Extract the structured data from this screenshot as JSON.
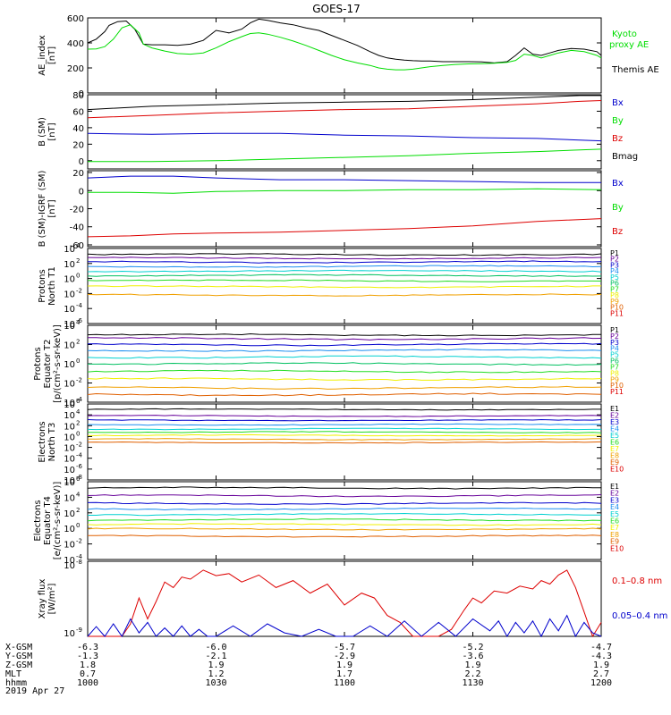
{
  "title": "GOES-17",
  "date_label": "2019 Apr 27",
  "colors": {
    "black": "#000000",
    "green": "#00dd00",
    "blue": "#0000cc",
    "red": "#dd0000"
  },
  "chart_data": [
    {
      "type": "line",
      "ylabel": [
        "AE_index",
        "[nT]"
      ],
      "ylim": [
        0,
        600
      ],
      "yticks": [
        0,
        200,
        400,
        600
      ],
      "ytick_labels": [
        "0",
        "200",
        "400",
        "600"
      ],
      "legend": [
        "Kyoto",
        "proxy AE",
        "Themis AE"
      ],
      "series": [
        {
          "name": "Themis AE",
          "color": "#000000",
          "x": [
            0,
            2,
            4,
            5,
            7,
            9,
            11,
            13,
            15,
            18,
            21,
            24,
            27,
            30,
            33,
            36,
            38,
            40,
            42,
            45,
            48,
            51,
            54,
            57,
            60,
            63,
            66,
            68,
            70,
            72,
            74,
            76,
            78,
            80,
            83,
            86,
            89,
            92,
            95,
            98,
            100,
            102,
            104,
            106,
            108,
            110,
            113,
            116,
            119,
            120
          ],
          "y": [
            400,
            430,
            490,
            540,
            570,
            575,
            510,
            390,
            385,
            385,
            380,
            390,
            420,
            500,
            480,
            510,
            560,
            590,
            580,
            560,
            545,
            520,
            500,
            460,
            420,
            380,
            330,
            300,
            280,
            270,
            262,
            258,
            256,
            255,
            250,
            250,
            250,
            248,
            240,
            250,
            300,
            360,
            310,
            300,
            320,
            340,
            355,
            350,
            330,
            300
          ]
        },
        {
          "name": "Kyoto proxy AE",
          "color": "#00dd00",
          "x": [
            0,
            2,
            4,
            6,
            8,
            10,
            12,
            13,
            15,
            18,
            21,
            24,
            27,
            30,
            33,
            36,
            38,
            40,
            42,
            45,
            48,
            51,
            54,
            57,
            60,
            63,
            66,
            68,
            70,
            72,
            74,
            76,
            78,
            80,
            83,
            86,
            89,
            92,
            95,
            98,
            100,
            102,
            104,
            106,
            108,
            110,
            113,
            116,
            119,
            120
          ],
          "y": [
            350,
            352,
            370,
            430,
            520,
            545,
            480,
            390,
            360,
            335,
            315,
            310,
            320,
            360,
            410,
            450,
            475,
            480,
            470,
            445,
            415,
            380,
            340,
            300,
            265,
            240,
            220,
            200,
            190,
            185,
            185,
            190,
            200,
            210,
            220,
            228,
            232,
            234,
            238,
            245,
            260,
            310,
            300,
            280,
            300,
            320,
            340,
            330,
            300,
            280
          ]
        }
      ]
    },
    {
      "type": "line",
      "ylabel": [
        "B (SM)",
        "[nT]"
      ],
      "ylim": [
        -10,
        80
      ],
      "yticks": [
        -20,
        0,
        20,
        40,
        60,
        80
      ],
      "ytick_labels": [
        "-20",
        "0",
        "20",
        "40",
        "60",
        "80"
      ],
      "legend": [
        "Bx",
        "By",
        "Bz",
        "Bmag"
      ],
      "series": [
        {
          "name": "Bmag",
          "color": "#000000",
          "x": [
            0,
            15,
            30,
            45,
            60,
            75,
            90,
            105,
            115,
            120
          ],
          "y": [
            62,
            66,
            68,
            70,
            71,
            72,
            74,
            77,
            79,
            79
          ]
        },
        {
          "name": "Bz",
          "color": "#dd0000",
          "x": [
            0,
            15,
            30,
            45,
            60,
            75,
            90,
            105,
            115,
            120
          ],
          "y": [
            52,
            55,
            58,
            60,
            62,
            63,
            66,
            69,
            72,
            73
          ]
        },
        {
          "name": "Bx",
          "color": "#0000cc",
          "x": [
            0,
            15,
            30,
            45,
            60,
            75,
            90,
            105,
            115,
            120
          ],
          "y": [
            33,
            32,
            33,
            33,
            31,
            30,
            28,
            27,
            25,
            24
          ]
        },
        {
          "name": "By",
          "color": "#00dd00",
          "x": [
            0,
            15,
            30,
            45,
            60,
            75,
            90,
            105,
            115,
            120
          ],
          "y": [
            -1,
            -1,
            0,
            2,
            4,
            6,
            9,
            11,
            13,
            14
          ]
        }
      ]
    },
    {
      "type": "line",
      "ylabel": [
        "B (SM)-IGRF (SM)",
        "[nT]"
      ],
      "ylim": [
        -62,
        22
      ],
      "yticks": [
        -60,
        -40,
        -20,
        0,
        20
      ],
      "ytick_labels": [
        "-60",
        "-40",
        "-20",
        "0",
        "20"
      ],
      "legend": [
        "Bx",
        "By",
        "Bz"
      ],
      "series": [
        {
          "name": "Bx",
          "color": "#0000cc",
          "x": [
            0,
            10,
            20,
            30,
            45,
            60,
            75,
            90,
            105,
            120
          ],
          "y": [
            14,
            16,
            16,
            14,
            12,
            12,
            11,
            10,
            9,
            9
          ]
        },
        {
          "name": "By",
          "color": "#00dd00",
          "x": [
            0,
            10,
            20,
            30,
            45,
            60,
            75,
            90,
            105,
            120
          ],
          "y": [
            -2,
            -2,
            -3,
            -1,
            0,
            0,
            1,
            1,
            2,
            1
          ]
        },
        {
          "name": "Bz",
          "color": "#dd0000",
          "x": [
            0,
            10,
            20,
            30,
            45,
            60,
            75,
            90,
            105,
            120
          ],
          "y": [
            -51,
            -50,
            -48,
            -47,
            -46,
            -44,
            -42,
            -39,
            -34,
            -31
          ]
        }
      ]
    },
    {
      "type": "line",
      "log": true,
      "ylabel": [
        "Protons",
        "North T1"
      ],
      "ylim_exp": [
        -6,
        4
      ],
      "yticks_exp": [
        4,
        2,
        0,
        -2,
        -4,
        -6
      ],
      "ytick_labels": [
        "4",
        "2",
        "0",
        "-2",
        "-4",
        "-6"
      ],
      "legend": [
        "P1",
        "P2",
        "P3",
        "P4",
        "P5",
        "P6",
        "P7",
        "P8",
        "P9",
        "P10",
        "P11"
      ],
      "legend_colors": [
        "#000000",
        "#660099",
        "#0000cc",
        "#1c8ef0",
        "#00d0d0",
        "#00c060",
        "#22dd22",
        "#f0f000",
        "#f0a000",
        "#e06000",
        "#dd0000"
      ],
      "levels_exp": [
        3.2,
        2.7,
        2.2,
        1.6,
        1.0,
        0.4,
        -0.3,
        -1.1,
        -2.2
      ]
    },
    {
      "type": "line",
      "log": true,
      "ylabel": [
        "Protons",
        "Equator T2",
        "[p/(cm²-s-sr-keV)]"
      ],
      "ylim_exp": [
        -4,
        4
      ],
      "yticks_exp": [
        4,
        2,
        0,
        -2,
        -4
      ],
      "ytick_labels": [
        "4",
        "2",
        "0",
        "-2",
        "-4"
      ],
      "legend": [
        "P1",
        "P2",
        "P3",
        "P4",
        "P5",
        "P6",
        "P7",
        "P8",
        "P9",
        "P10",
        "P11"
      ],
      "legend_colors": [
        "#000000",
        "#660099",
        "#0000cc",
        "#1c8ef0",
        "#00d0d0",
        "#00c060",
        "#22dd22",
        "#f0f000",
        "#f0a000",
        "#e06000",
        "#dd0000"
      ],
      "levels_exp": [
        3.0,
        2.6,
        2.0,
        1.4,
        0.7,
        0.0,
        -0.8,
        -1.6,
        -2.5,
        -3.2
      ]
    },
    {
      "type": "line",
      "log": true,
      "ylabel": [
        "Electrons",
        "North T3"
      ],
      "ylim_exp": [
        -8,
        6
      ],
      "yticks_exp": [
        6,
        4,
        2,
        0,
        -2,
        -4,
        -6,
        -8
      ],
      "ytick_labels": [
        "6",
        "4",
        "2",
        "0",
        "-2",
        "-4",
        "-6",
        "-8"
      ],
      "legend": [
        "E1",
        "E2",
        "E3",
        "E4",
        "E5",
        "E6",
        "E7",
        "E8",
        "E9",
        "E10"
      ],
      "legend_colors": [
        "#000000",
        "#660099",
        "#0000cc",
        "#1c8ef0",
        "#00d0d0",
        "#22dd22",
        "#f0f000",
        "#f0a000",
        "#e06000",
        "#dd0000"
      ],
      "levels_exp": [
        5.0,
        3.8,
        3.0,
        2.2,
        1.4,
        0.8,
        0.2,
        -0.5,
        -1.1
      ]
    },
    {
      "type": "line",
      "log": true,
      "ylabel": [
        "Electrons",
        "Equator T4",
        "[e/(cm²-s-sr-keV)]"
      ],
      "ylim_exp": [
        -4,
        6
      ],
      "yticks_exp": [
        6,
        4,
        2,
        0,
        -2,
        -4
      ],
      "ytick_labels": [
        "6",
        "4",
        "2",
        "0",
        "-2",
        "-4"
      ],
      "legend": [
        "E1",
        "E2",
        "E3",
        "E4",
        "E5",
        "E6",
        "E7",
        "E8",
        "E9",
        "E10"
      ],
      "legend_colors": [
        "#000000",
        "#660099",
        "#0000cc",
        "#1c8ef0",
        "#00d0d0",
        "#22dd22",
        "#f0f000",
        "#f0a000",
        "#e06000",
        "#dd0000"
      ],
      "levels_exp": [
        5.2,
        4.2,
        3.2,
        2.5,
        1.8,
        1.1,
        0.5,
        -0.1,
        -1.0
      ]
    },
    {
      "type": "line",
      "log": true,
      "ylabel": [
        "Xray flux",
        "[W/m²]"
      ],
      "yticks_exp": [
        -8,
        -9
      ],
      "ytick_labels": [
        "-8",
        "-9"
      ],
      "legend": [
        "0.1–0.8 nm",
        "0.05–0.4 nm"
      ],
      "series": [
        {
          "name": "0.1–0.8 nm",
          "color": "#dd0000",
          "x": [
            0,
            8,
            10,
            12,
            14,
            16,
            18,
            20,
            22,
            24,
            27,
            30,
            33,
            36,
            40,
            44,
            48,
            52,
            56,
            60,
            64,
            67,
            70,
            73,
            76,
            79,
            82,
            85,
            88,
            90,
            92,
            95,
            98,
            101,
            104,
            106,
            108,
            110,
            112,
            114,
            116,
            118,
            120
          ],
          "y": [
            0.0,
            0.0,
            0.18,
            0.55,
            0.25,
            0.5,
            0.78,
            0.7,
            0.85,
            0.82,
            0.95,
            0.87,
            0.9,
            0.78,
            0.88,
            0.7,
            0.8,
            0.62,
            0.75,
            0.45,
            0.62,
            0.55,
            0.3,
            0.2,
            0.0,
            0.0,
            0.0,
            0.1,
            0.38,
            0.55,
            0.48,
            0.65,
            0.62,
            0.72,
            0.68,
            0.8,
            0.75,
            0.88,
            0.95,
            0.7,
            0.35,
            0.0,
            0.2
          ]
        },
        {
          "name": "0.05–0.4 nm",
          "color": "#0000cc",
          "x": [
            0,
            2,
            4,
            6,
            8,
            10,
            12,
            14,
            16,
            18,
            20,
            22,
            24,
            26,
            28,
            30,
            34,
            38,
            42,
            46,
            50,
            54,
            58,
            62,
            66,
            70,
            74,
            78,
            82,
            86,
            90,
            94,
            96,
            98,
            100,
            102,
            104,
            106,
            108,
            110,
            112,
            114,
            116,
            118,
            120
          ],
          "y": [
            0.0,
            0.14,
            0.0,
            0.18,
            0.0,
            0.25,
            0.05,
            0.2,
            0.0,
            0.12,
            0.0,
            0.15,
            0.0,
            0.1,
            0.0,
            0.0,
            0.15,
            0.0,
            0.18,
            0.05,
            0.0,
            0.1,
            0.0,
            0.0,
            0.15,
            0.0,
            0.22,
            0.0,
            0.2,
            0.0,
            0.25,
            0.08,
            0.22,
            0.0,
            0.2,
            0.05,
            0.22,
            0.0,
            0.25,
            0.08,
            0.3,
            0.0,
            0.2,
            0.05,
            0.0
          ]
        }
      ]
    }
  ],
  "x_axis": {
    "xlim": [
      0,
      120
    ],
    "row_labels": [
      "X-GSM",
      "Y-GSM",
      "Z-GSM",
      "MLT",
      "hhmm"
    ],
    "ticks": [
      {
        "x": 0,
        "rows": [
          "-6.3",
          "-1.3",
          "1.8",
          "0.7",
          "1000"
        ]
      },
      {
        "x": 30,
        "rows": [
          "-6.0",
          "-2.1",
          "1.9",
          "1.2",
          "1030"
        ]
      },
      {
        "x": 60,
        "rows": [
          "-5.7",
          "-2.9",
          "1.9",
          "1.7",
          "1100"
        ]
      },
      {
        "x": 90,
        "rows": [
          "-5.2",
          "-3.6",
          "1.9",
          "2.2",
          "1130"
        ]
      },
      {
        "x": 120,
        "rows": [
          "-4.7",
          "-4.3",
          "1.9",
          "2.7",
          "1200"
        ]
      }
    ]
  }
}
